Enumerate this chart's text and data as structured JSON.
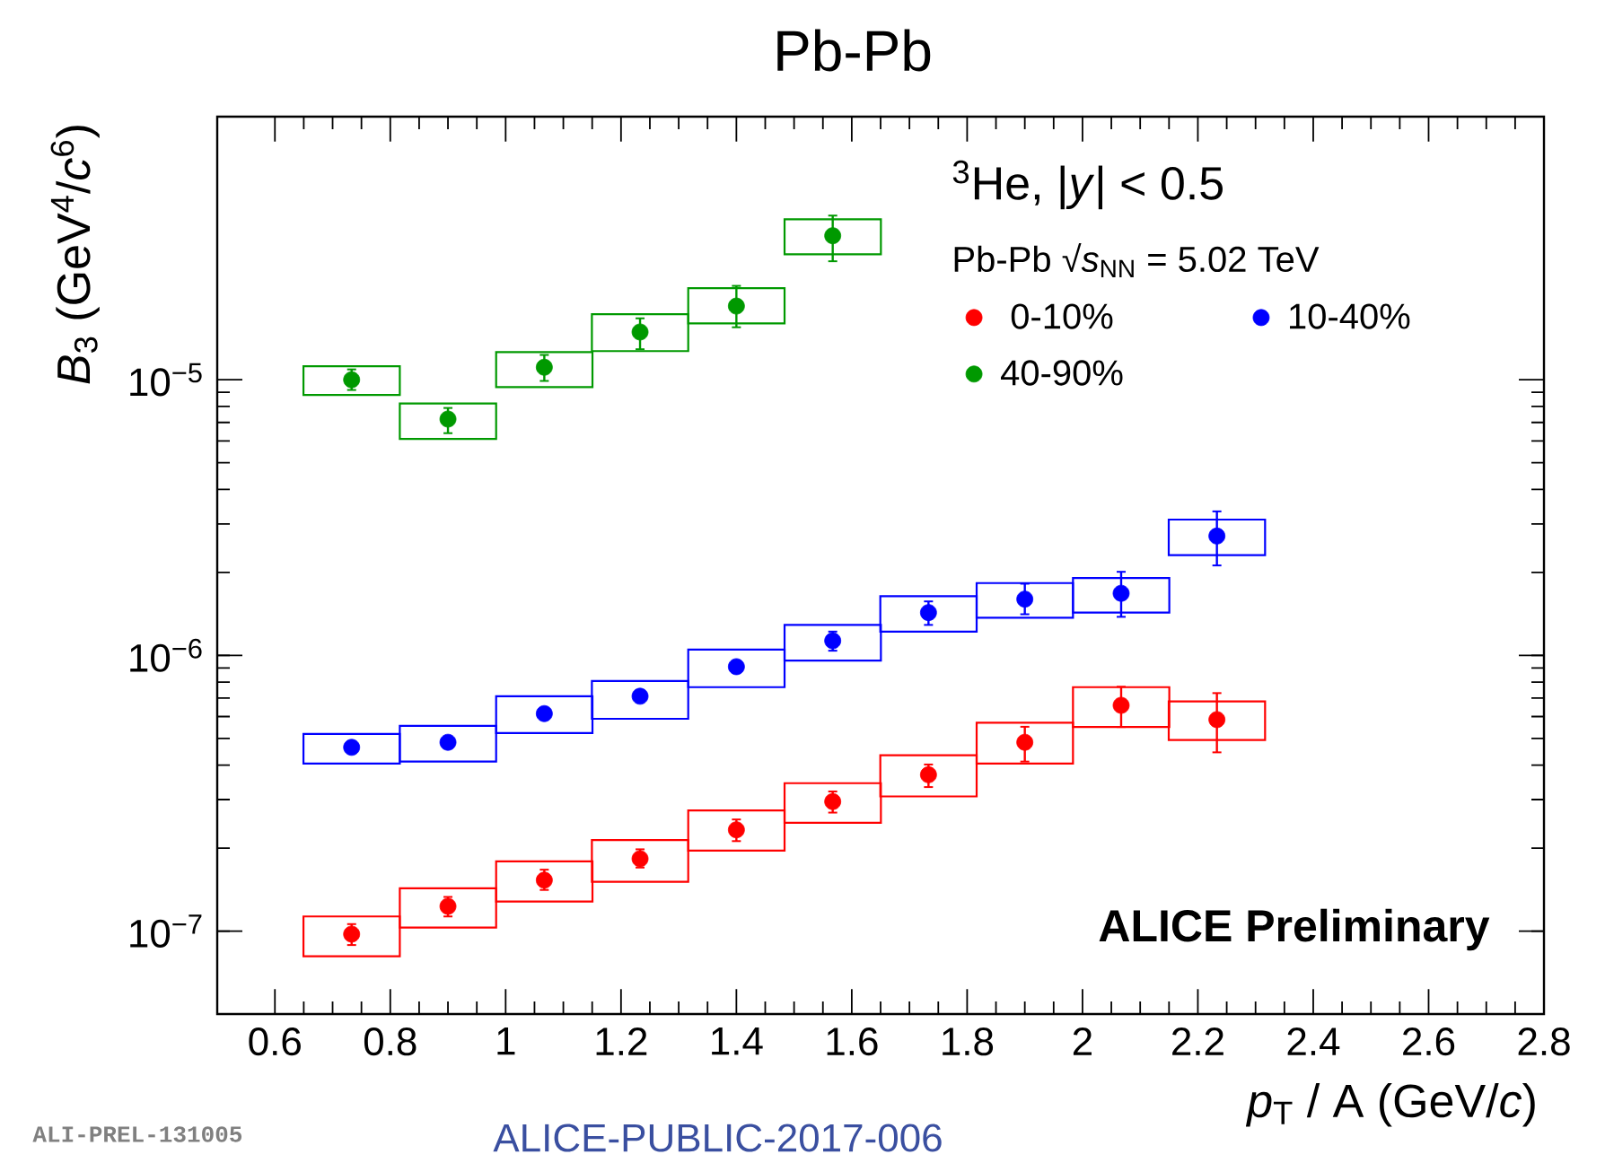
{
  "chart_data": {
    "type": "scatter",
    "title": "Pb-Pb",
    "xlabel": "*p*$_{T}$ / A (GeV/*c*)",
    "ylabel": "*B*$_{3}$ (GeV$^{4}$/*c*$^{6}$)",
    "annotations": [
      "$^{3}$He, |*y*| < 0.5",
      "Pb-Pb √*s*$_{NN}$ = 5.02 TeV",
      "ALICE Preliminary",
      "ALI-PREL-131005",
      "ALICE-PUBLIC-2017-006"
    ],
    "log": "y",
    "marker": "circle",
    "legend": "top right",
    "xlim": [
      0.5,
      2.8
    ],
    "xticks": [
      0.6,
      0.8,
      1,
      1.2,
      1.4,
      1.6,
      1.8,
      2,
      2.2,
      2.4,
      2.6,
      2.8
    ],
    "ylim": [
      5e-08,
      9e-05
    ],
    "yticks": [
      {
        "value": 1e-07,
        "label": "10$^{−7}$"
      },
      {
        "value": 1e-06,
        "label": "10$^{−6}$"
      },
      {
        "value": 1e-05,
        "label": "10$^{−5}$"
      }
    ],
    "series": [
      {
        "name": "0-10%",
        "color": "#ff0000",
        "x": [
          0.733,
          0.9,
          1.067,
          1.233,
          1.4,
          1.567,
          1.733,
          1.9,
          2.067,
          2.233
        ],
        "values": [
          9.75e-08,
          1.23e-07,
          1.53e-07,
          1.83e-07,
          2.33e-07,
          2.95e-07,
          3.69e-07,
          4.84e-07,
          6.59e-07,
          5.85e-07
        ],
        "errors": [
          [
            8.9e-08,
            1.06e-07
          ],
          [
            1.13e-07,
            1.33e-07
          ],
          [
            1.41e-07,
            1.67e-07
          ],
          [
            1.7e-07,
            1.98e-07
          ],
          [
            2.12e-07,
            2.54e-07
          ],
          [
            2.69e-07,
            3.21e-07
          ],
          [
            3.33e-07,
            4.02e-07
          ],
          [
            4.12e-07,
            5.51e-07
          ],
          [
            5.5e-07,
            7.7e-07
          ],
          [
            4.45e-07,
            7.3e-07
          ]
        ]
      },
      {
        "name": "10-40%",
        "color": "#0000ff",
        "x": [
          0.733,
          0.9,
          1.067,
          1.233,
          1.4,
          1.567,
          1.733,
          1.9,
          2.067,
          2.233
        ],
        "values": [
          4.64e-07,
          4.84e-07,
          6.15e-07,
          7.11e-07,
          9.1e-07,
          1.13e-06,
          1.43e-06,
          1.6e-06,
          1.68e-06,
          2.71e-06
        ],
        "errors": [
          null,
          null,
          null,
          null,
          null,
          [
            1.04e-06,
            1.22e-06
          ],
          [
            1.29e-06,
            1.57e-06
          ],
          [
            1.41e-06,
            1.82e-06
          ],
          [
            1.38e-06,
            2.01e-06
          ],
          [
            2.12e-06,
            3.33e-06
          ]
        ]
      },
      {
        "name": "40-90%",
        "color": "#009900",
        "x": [
          0.733,
          0.9,
          1.067,
          1.233,
          1.4,
          1.567
        ],
        "values": [
          1e-05,
          7.2e-06,
          1.11e-05,
          1.49e-05,
          1.85e-05,
          3.33e-05
        ],
        "errors": [
          [
            9.18e-06,
            1.09e-05
          ],
          [
            6.4e-06,
            7.9e-06
          ],
          [
            9.9e-06,
            1.23e-05
          ],
          [
            1.29e-05,
            1.67e-05
          ],
          [
            1.55e-05,
            2.19e-05
          ],
          [
            2.69e-05,
            3.94e-05
          ]
        ]
      },
      {
        "type": "bar",
        "color": "#ff0000",
        "x": [
          0.733,
          0.9,
          1.067,
          1.233,
          1.4,
          1.567,
          1.733,
          1.9,
          2.067,
          2.233
        ],
        "base": [
          8.1e-08,
          1.03e-07,
          1.28e-07,
          1.51e-07,
          1.96e-07,
          2.47e-07,
          3.08e-07,
          4.05e-07,
          5.5e-07,
          4.93e-07
        ],
        "values": [
          3.2e-08,
          4e-08,
          5.1e-08,
          6.3e-08,
          7.8e-08,
          9.7e-08,
          1.26e-07,
          1.65e-07,
          2.17e-07,
          1.88e-07
        ]
      },
      {
        "type": "bar",
        "color": "#0000ff",
        "x": [
          0.733,
          0.9,
          1.067,
          1.233,
          1.4,
          1.567,
          1.733,
          1.9,
          2.067,
          2.233
        ],
        "base": [
          4.05e-07,
          4.12e-07,
          5.23e-07,
          5.89e-07,
          7.67e-07,
          9.58e-07,
          1.22e-06,
          1.37e-06,
          1.43e-06,
          2.31e-06
        ],
        "values": [
          1.14e-07,
          1.43e-07,
          1.88e-07,
          2.19e-07,
          2.83e-07,
          3.32e-07,
          4.2e-07,
          4.6e-07,
          4.8e-07,
          8e-07
        ]
      },
      {
        "type": "bar",
        "color": "#009900",
        "x": [
          0.733,
          0.9,
          1.067,
          1.233,
          1.4,
          1.567
        ],
        "base": [
          8.8e-06,
          6.1e-06,
          9.4e-06,
          1.27e-05,
          1.6e-05,
          2.85e-05
        ],
        "values": [
          2.4e-06,
          2.1e-06,
          3.2e-06,
          4.6e-06,
          5.5e-06,
          9.7e-06
        ]
      }
    ]
  }
}
